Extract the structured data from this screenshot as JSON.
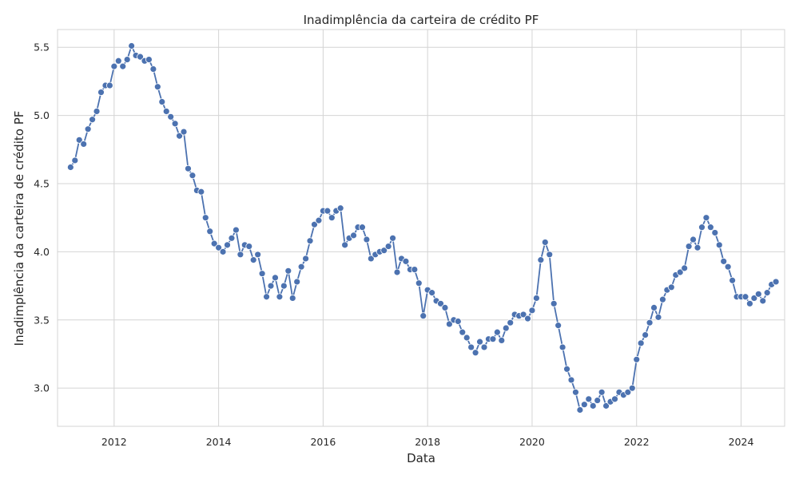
{
  "chart_data": {
    "type": "line",
    "title": "Inadimplência da carteira de crédito PF",
    "xlabel": "Data",
    "ylabel": "Inadimplência da carteira de crédito PF",
    "xlim": [
      "2010-12-01",
      "2024-11-01"
    ],
    "ylim": [
      2.72,
      5.63
    ],
    "x_ticks": [
      "2012",
      "2014",
      "2016",
      "2018",
      "2020",
      "2022",
      "2024"
    ],
    "y_ticks": [
      "3.0",
      "3.5",
      "4.0",
      "4.5",
      "5.0",
      "5.5"
    ],
    "grid": true,
    "legend": "none",
    "colors": {
      "line": "#4c72b0",
      "grid": "#d4d4d4",
      "background": "#ffffff"
    },
    "series": [
      {
        "x": [
          "2011-03",
          "2011-04",
          "2011-05",
          "2011-06",
          "2011-07",
          "2011-08",
          "2011-09",
          "2011-10",
          "2011-11",
          "2011-12",
          "2012-01",
          "2012-02",
          "2012-03",
          "2012-04",
          "2012-05",
          "2012-06",
          "2012-07",
          "2012-08",
          "2012-09",
          "2012-10",
          "2012-11",
          "2012-12",
          "2013-01",
          "2013-02",
          "2013-03",
          "2013-04",
          "2013-05",
          "2013-06",
          "2013-07",
          "2013-08",
          "2013-09",
          "2013-10",
          "2013-11",
          "2013-12",
          "2014-01",
          "2014-02",
          "2014-03",
          "2014-04",
          "2014-05",
          "2014-06",
          "2014-07",
          "2014-08",
          "2014-09",
          "2014-10",
          "2014-11",
          "2014-12",
          "2015-01",
          "2015-02",
          "2015-03",
          "2015-04",
          "2015-05",
          "2015-06",
          "2015-07",
          "2015-08",
          "2015-09",
          "2015-10",
          "2015-11",
          "2015-12",
          "2016-01",
          "2016-02",
          "2016-03",
          "2016-04",
          "2016-05",
          "2016-06",
          "2016-07",
          "2016-08",
          "2016-09",
          "2016-10",
          "2016-11",
          "2016-12",
          "2017-01",
          "2017-02",
          "2017-03",
          "2017-04",
          "2017-05",
          "2017-06",
          "2017-07",
          "2017-08",
          "2017-09",
          "2017-10",
          "2017-11",
          "2017-12",
          "2018-01",
          "2018-02",
          "2018-03",
          "2018-04",
          "2018-05",
          "2018-06",
          "2018-07",
          "2018-08",
          "2018-09",
          "2018-10",
          "2018-11",
          "2018-12",
          "2019-01",
          "2019-02",
          "2019-03",
          "2019-04",
          "2019-05",
          "2019-06",
          "2019-07",
          "2019-08",
          "2019-09",
          "2019-10",
          "2019-11",
          "2019-12",
          "2020-01",
          "2020-02",
          "2020-03",
          "2020-04",
          "2020-05",
          "2020-06",
          "2020-07",
          "2020-08",
          "2020-09",
          "2020-10",
          "2020-11",
          "2020-12",
          "2021-01",
          "2021-02",
          "2021-03",
          "2021-04",
          "2021-05",
          "2021-06",
          "2021-07",
          "2021-08",
          "2021-09",
          "2021-10",
          "2021-11",
          "2021-12",
          "2022-01",
          "2022-02",
          "2022-03",
          "2022-04",
          "2022-05",
          "2022-06",
          "2022-07",
          "2022-08",
          "2022-09",
          "2022-10",
          "2022-11",
          "2022-12",
          "2023-01",
          "2023-02",
          "2023-03",
          "2023-04",
          "2023-05",
          "2023-06",
          "2023-07",
          "2023-08",
          "2023-09",
          "2023-10",
          "2023-11",
          "2023-12",
          "2024-01",
          "2024-02",
          "2024-03",
          "2024-04",
          "2024-05",
          "2024-06",
          "2024-07",
          "2024-08",
          "2024-09"
        ],
        "y": [
          4.62,
          4.67,
          4.82,
          4.79,
          4.9,
          4.97,
          5.03,
          5.17,
          5.22,
          5.22,
          5.36,
          5.4,
          5.36,
          5.41,
          5.51,
          5.44,
          5.43,
          5.4,
          5.41,
          5.34,
          5.21,
          5.1,
          5.03,
          4.99,
          4.94,
          4.85,
          4.88,
          4.61,
          4.56,
          4.45,
          4.44,
          4.25,
          4.15,
          4.06,
          4.03,
          4.0,
          4.05,
          4.1,
          4.16,
          3.98,
          4.05,
          4.04,
          3.94,
          3.98,
          3.84,
          3.67,
          3.75,
          3.81,
          3.67,
          3.75,
          3.86,
          3.66,
          3.78,
          3.89,
          3.95,
          4.08,
          4.2,
          4.23,
          4.3,
          4.3,
          4.25,
          4.3,
          4.32,
          4.05,
          4.1,
          4.12,
          4.18,
          4.18,
          4.09,
          3.95,
          3.98,
          4.0,
          4.01,
          4.04,
          4.1,
          3.85,
          3.95,
          3.93,
          3.87,
          3.87,
          3.77,
          3.53,
          3.72,
          3.7,
          3.64,
          3.62,
          3.59,
          3.47,
          3.5,
          3.49,
          3.41,
          3.37,
          3.3,
          3.26,
          3.34,
          3.3,
          3.36,
          3.36,
          3.41,
          3.35,
          3.44,
          3.48,
          3.54,
          3.53,
          3.54,
          3.51,
          3.57,
          3.66,
          3.94,
          4.07,
          3.98,
          3.62,
          3.46,
          3.3,
          3.14,
          3.06,
          2.97,
          2.84,
          2.88,
          2.92,
          2.87,
          2.91,
          2.97,
          2.87,
          2.9,
          2.92,
          2.97,
          2.95,
          2.97,
          3.0,
          3.21,
          3.33,
          3.39,
          3.48,
          3.59,
          3.52,
          3.65,
          3.72,
          3.74,
          3.83,
          3.85,
          3.88,
          4.04,
          4.09,
          4.03,
          4.18,
          4.25,
          4.18,
          4.14,
          4.05,
          3.93,
          3.89,
          3.79,
          3.67,
          3.67,
          3.67,
          3.62,
          3.66,
          3.69,
          3.64,
          3.7,
          3.76,
          3.78
        ]
      }
    ]
  }
}
